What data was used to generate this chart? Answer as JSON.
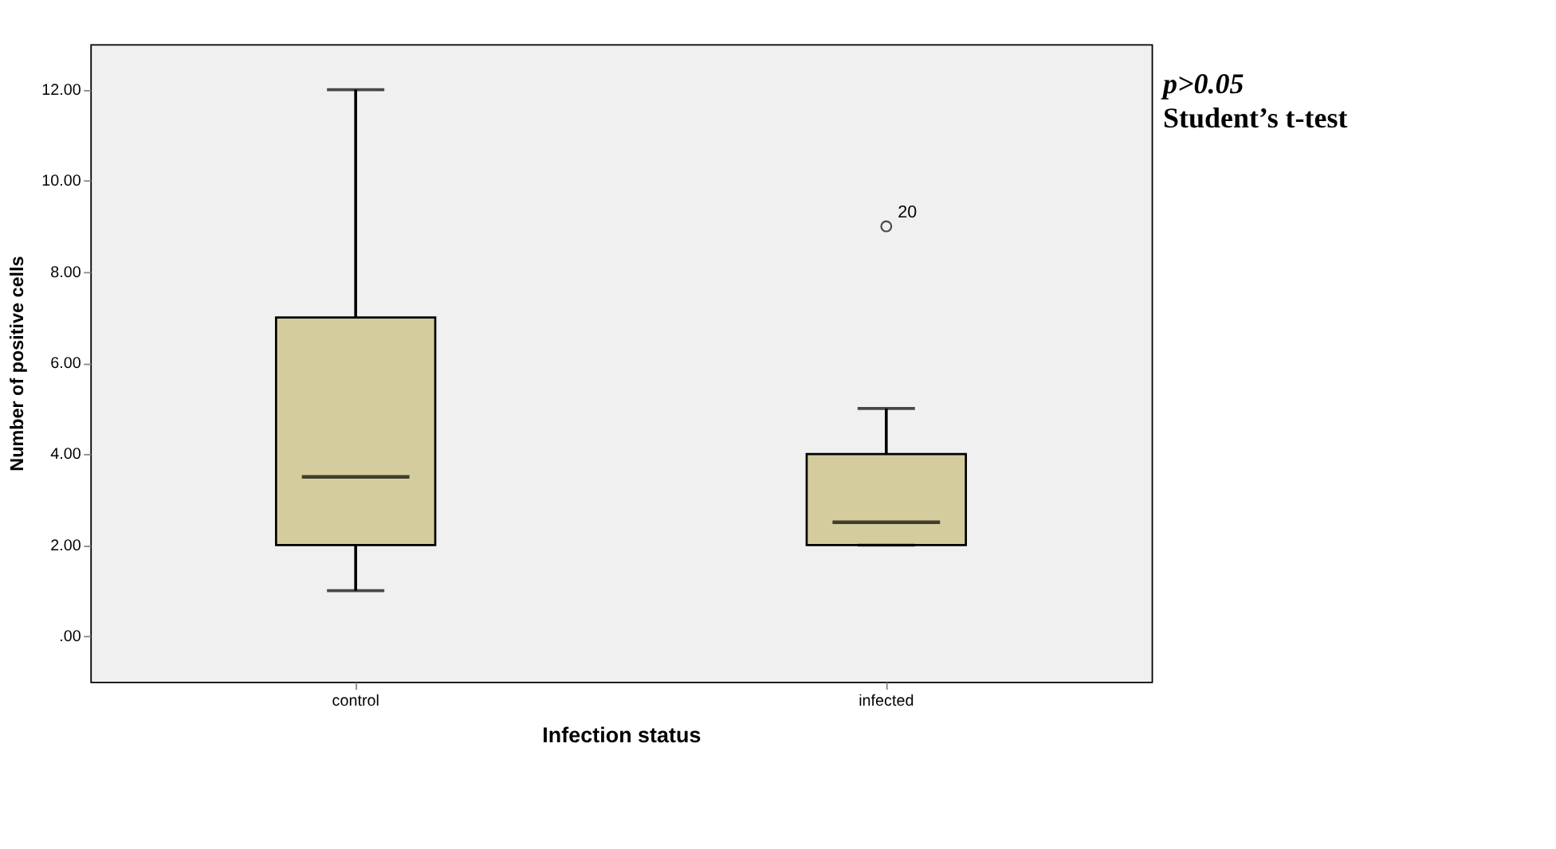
{
  "chart_data": {
    "type": "box",
    "xlabel": "Infection status",
    "ylabel": "Number of positive cells",
    "categories": [
      "control",
      "infected"
    ],
    "boxes": [
      {
        "low": 1,
        "q1": 2,
        "median": 3.5,
        "q3": 7,
        "high": 12
      },
      {
        "low": 2,
        "q1": 2,
        "median": 2.5,
        "q3": 4,
        "high": 5,
        "outliers": [
          9
        ]
      }
    ],
    "color": "#d4cc9c",
    "ylim": [
      -1,
      13
    ],
    "yticks": [
      {
        "value": 0,
        "label": ".00"
      },
      {
        "value": 2,
        "label": "2.00"
      },
      {
        "value": 4,
        "label": "4.00"
      },
      {
        "value": 6,
        "label": "6.00"
      },
      {
        "value": 8,
        "label": "8.00"
      },
      {
        "value": 10,
        "label": "10.00"
      },
      {
        "value": 12,
        "label": "12.00"
      }
    ],
    "annotations": [
      "20",
      "p>0.05",
      "Student’s t-test"
    ]
  }
}
